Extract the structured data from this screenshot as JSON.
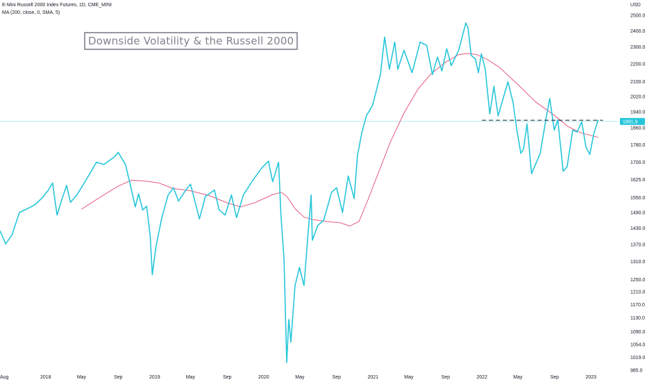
{
  "header": {
    "symbol_line": "E-Mini Russell 2000 Index Futures, 1D, CME_MINI",
    "indicator_line": "MA (200, close, 0, SMA, 5)"
  },
  "annotation": {
    "title": "Downside Volatility & the Russell 2000"
  },
  "price_axis": {
    "unit": "USD"
  },
  "colors": {
    "price": "#26c6da",
    "ma": "#e55a7d",
    "hline": "#131722",
    "current_line": "#b2ebf2",
    "price_tag": "#26c6da",
    "axis_text": "#131722",
    "background": "#ffffff"
  },
  "chart_data": {
    "type": "line",
    "title": "Downside Volatility & the Russell 2000",
    "scale": "log",
    "ylim": [
      985,
      2500
    ],
    "xlim": [
      "2017-08-01",
      "2023-04-01"
    ],
    "y_ticks": [
      {
        "value": 2500,
        "label": "2500.0"
      },
      {
        "value": 2400,
        "label": "2400.0"
      },
      {
        "value": 2300,
        "label": "2300.0"
      },
      {
        "value": 2200,
        "label": "2200.0"
      },
      {
        "value": 2100,
        "label": "2100.0"
      },
      {
        "value": 2020,
        "label": "2020.0"
      },
      {
        "value": 1940,
        "label": "1940.0"
      },
      {
        "value": 1860,
        "label": "1860.0"
      },
      {
        "value": 1780,
        "label": "1780.0"
      },
      {
        "value": 1700,
        "label": "1700.0"
      },
      {
        "value": 1625,
        "label": "1625.0"
      },
      {
        "value": 1550,
        "label": "1550.0"
      },
      {
        "value": 1490,
        "label": "1490.0"
      },
      {
        "value": 1430,
        "label": "1430.0"
      },
      {
        "value": 1370,
        "label": "1370.0"
      },
      {
        "value": 1310,
        "label": "1310.0"
      },
      {
        "value": 1250,
        "label": "1250.0"
      },
      {
        "value": 1210,
        "label": "1210.0"
      },
      {
        "value": 1170,
        "label": "1170.0"
      },
      {
        "value": 1130,
        "label": "1130.0"
      },
      {
        "value": 1090,
        "label": "1090.0"
      },
      {
        "value": 1054,
        "label": "1054.0"
      },
      {
        "value": 1019,
        "label": "1019.0"
      },
      {
        "value": 985,
        "label": "985.0"
      }
    ],
    "x_ticks": [
      {
        "date": "2017-08-01",
        "label": "Aug"
      },
      {
        "date": "2018-01-01",
        "label": "2018"
      },
      {
        "date": "2018-05-01",
        "label": "May"
      },
      {
        "date": "2018-09-01",
        "label": "Sep"
      },
      {
        "date": "2019-01-01",
        "label": "2019"
      },
      {
        "date": "2019-05-01",
        "label": "May"
      },
      {
        "date": "2019-09-01",
        "label": "Sep"
      },
      {
        "date": "2020-01-01",
        "label": "2020"
      },
      {
        "date": "2020-05-01",
        "label": "May"
      },
      {
        "date": "2020-09-01",
        "label": "Sep"
      },
      {
        "date": "2021-01-01",
        "label": "2021"
      },
      {
        "date": "2021-05-01",
        "label": "May"
      },
      {
        "date": "2021-09-01",
        "label": "Sep"
      },
      {
        "date": "2022-01-01",
        "label": "2022"
      },
      {
        "date": "2022-05-01",
        "label": "May"
      },
      {
        "date": "2022-09-01",
        "label": "Sep"
      },
      {
        "date": "2023-01-01",
        "label": "2023"
      }
    ],
    "series": [
      {
        "name": "E-Mini Russell 2000 Index Futures",
        "points": [
          [
            "2017-08-01",
            1420
          ],
          [
            "2017-08-20",
            1372
          ],
          [
            "2017-09-10",
            1405
          ],
          [
            "2017-10-05",
            1490
          ],
          [
            "2017-11-01",
            1505
          ],
          [
            "2017-11-25",
            1520
          ],
          [
            "2017-12-20",
            1548
          ],
          [
            "2018-01-10",
            1580
          ],
          [
            "2018-01-24",
            1610
          ],
          [
            "2018-02-08",
            1480
          ],
          [
            "2018-02-25",
            1545
          ],
          [
            "2018-03-12",
            1600
          ],
          [
            "2018-03-25",
            1530
          ],
          [
            "2018-04-15",
            1560
          ],
          [
            "2018-05-15",
            1620
          ],
          [
            "2018-06-20",
            1700
          ],
          [
            "2018-07-15",
            1690
          ],
          [
            "2018-08-20",
            1725
          ],
          [
            "2018-09-01",
            1745
          ],
          [
            "2018-09-25",
            1690
          ],
          [
            "2018-10-11",
            1605
          ],
          [
            "2018-10-28",
            1512
          ],
          [
            "2018-11-08",
            1565
          ],
          [
            "2018-11-22",
            1500
          ],
          [
            "2018-12-05",
            1515
          ],
          [
            "2018-12-17",
            1400
          ],
          [
            "2018-12-24",
            1265
          ],
          [
            "2019-01-05",
            1360
          ],
          [
            "2019-01-25",
            1470
          ],
          [
            "2019-02-15",
            1560
          ],
          [
            "2019-03-05",
            1590
          ],
          [
            "2019-03-22",
            1535
          ],
          [
            "2019-04-15",
            1580
          ],
          [
            "2019-05-01",
            1605
          ],
          [
            "2019-05-31",
            1465
          ],
          [
            "2019-06-20",
            1555
          ],
          [
            "2019-07-20",
            1580
          ],
          [
            "2019-08-05",
            1500
          ],
          [
            "2019-08-25",
            1480
          ],
          [
            "2019-09-15",
            1560
          ],
          [
            "2019-10-02",
            1470
          ],
          [
            "2019-10-25",
            1560
          ],
          [
            "2019-11-25",
            1620
          ],
          [
            "2019-12-26",
            1675
          ],
          [
            "2020-01-17",
            1705
          ],
          [
            "2020-01-31",
            1615
          ],
          [
            "2020-02-20",
            1700
          ],
          [
            "2020-02-28",
            1475
          ],
          [
            "2020-03-09",
            1320
          ],
          [
            "2020-03-18",
            1005
          ],
          [
            "2020-03-25",
            1125
          ],
          [
            "2020-04-01",
            1060
          ],
          [
            "2020-04-15",
            1230
          ],
          [
            "2020-04-30",
            1290
          ],
          [
            "2020-05-15",
            1230
          ],
          [
            "2020-06-08",
            1560
          ],
          [
            "2020-06-12",
            1385
          ],
          [
            "2020-06-30",
            1440
          ],
          [
            "2020-07-20",
            1460
          ],
          [
            "2020-08-15",
            1570
          ],
          [
            "2020-09-01",
            1590
          ],
          [
            "2020-09-21",
            1490
          ],
          [
            "2020-10-10",
            1640
          ],
          [
            "2020-10-30",
            1545
          ],
          [
            "2020-11-10",
            1730
          ],
          [
            "2020-11-25",
            1840
          ],
          [
            "2020-12-10",
            1920
          ],
          [
            "2020-12-31",
            1975
          ],
          [
            "2021-01-26",
            2140
          ],
          [
            "2021-02-09",
            2360
          ],
          [
            "2021-02-25",
            2170
          ],
          [
            "2021-03-15",
            2330
          ],
          [
            "2021-03-25",
            2170
          ],
          [
            "2021-04-15",
            2280
          ],
          [
            "2021-05-12",
            2150
          ],
          [
            "2021-06-08",
            2330
          ],
          [
            "2021-06-30",
            2310
          ],
          [
            "2021-07-19",
            2140
          ],
          [
            "2021-08-05",
            2240
          ],
          [
            "2021-08-20",
            2160
          ],
          [
            "2021-09-05",
            2290
          ],
          [
            "2021-09-20",
            2190
          ],
          [
            "2021-10-15",
            2280
          ],
          [
            "2021-11-08",
            2450
          ],
          [
            "2021-11-15",
            2420
          ],
          [
            "2021-11-26",
            2250
          ],
          [
            "2021-12-10",
            2230
          ],
          [
            "2021-12-20",
            2150
          ],
          [
            "2021-12-30",
            2260
          ],
          [
            "2022-01-12",
            2170
          ],
          [
            "2022-01-27",
            1930
          ],
          [
            "2022-02-10",
            2075
          ],
          [
            "2022-02-24",
            1920
          ],
          [
            "2022-03-29",
            2100
          ],
          [
            "2022-04-15",
            1990
          ],
          [
            "2022-04-28",
            1850
          ],
          [
            "2022-05-11",
            1740
          ],
          [
            "2022-05-20",
            1760
          ],
          [
            "2022-06-01",
            1880
          ],
          [
            "2022-06-16",
            1650
          ],
          [
            "2022-07-15",
            1740
          ],
          [
            "2022-08-05",
            1920
          ],
          [
            "2022-08-16",
            2010
          ],
          [
            "2022-08-31",
            1850
          ],
          [
            "2022-09-12",
            1900
          ],
          [
            "2022-09-30",
            1660
          ],
          [
            "2022-10-13",
            1680
          ],
          [
            "2022-11-01",
            1850
          ],
          [
            "2022-11-15",
            1840
          ],
          [
            "2022-12-01",
            1890
          ],
          [
            "2022-12-15",
            1770
          ],
          [
            "2022-12-28",
            1735
          ],
          [
            "2023-01-10",
            1830
          ],
          [
            "2023-01-25",
            1900
          ]
        ]
      },
      {
        "name": "MA (200, close, 0, SMA, 5)",
        "points": [
          [
            "2018-05-01",
            1503
          ],
          [
            "2018-07-01",
            1550
          ],
          [
            "2018-09-01",
            1597
          ],
          [
            "2018-10-15",
            1622
          ],
          [
            "2018-12-01",
            1618
          ],
          [
            "2019-01-15",
            1610
          ],
          [
            "2019-03-01",
            1588
          ],
          [
            "2019-05-01",
            1577
          ],
          [
            "2019-07-01",
            1558
          ],
          [
            "2019-09-01",
            1528
          ],
          [
            "2019-10-15",
            1512
          ],
          [
            "2019-12-01",
            1528
          ],
          [
            "2020-02-01",
            1562
          ],
          [
            "2020-03-01",
            1571
          ],
          [
            "2020-03-20",
            1552
          ],
          [
            "2020-04-15",
            1505
          ],
          [
            "2020-05-15",
            1472
          ],
          [
            "2020-06-15",
            1462
          ],
          [
            "2020-08-01",
            1455
          ],
          [
            "2020-09-15",
            1450
          ],
          [
            "2020-10-15",
            1438
          ],
          [
            "2020-11-15",
            1455
          ],
          [
            "2020-12-15",
            1540
          ],
          [
            "2021-01-15",
            1640
          ],
          [
            "2021-03-01",
            1795
          ],
          [
            "2021-04-15",
            1935
          ],
          [
            "2021-06-01",
            2060
          ],
          [
            "2021-07-15",
            2145
          ],
          [
            "2021-09-01",
            2210
          ],
          [
            "2021-10-15",
            2255
          ],
          [
            "2021-11-15",
            2262
          ],
          [
            "2021-12-15",
            2255
          ],
          [
            "2022-01-15",
            2230
          ],
          [
            "2022-03-01",
            2180
          ],
          [
            "2022-05-01",
            2085
          ],
          [
            "2022-07-01",
            1990
          ],
          [
            "2022-09-01",
            1922
          ],
          [
            "2022-10-15",
            1868
          ],
          [
            "2022-12-01",
            1835
          ],
          [
            "2023-01-25",
            1815
          ]
        ]
      }
    ],
    "horizontal_line": {
      "value": 1898,
      "from": "2022-01-01",
      "to": "2023-02-10",
      "style": "dashed"
    },
    "current_price": {
      "value": 1891.9,
      "label": "1891.9"
    }
  }
}
